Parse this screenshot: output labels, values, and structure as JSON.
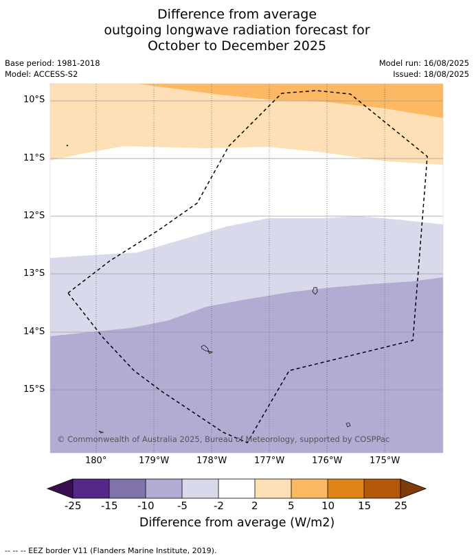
{
  "title": {
    "line1": "Difference from average",
    "line2": "outgoing longwave radiation forecast for",
    "line3": "October to December 2025"
  },
  "meta": {
    "base_period": "Base period: 1981-2018",
    "model": "Model: ACCESS-S2",
    "model_run": "Model run: 16/08/2025",
    "issued": "Issued: 18/08/2025"
  },
  "map": {
    "lat_labels": [
      "10°S",
      "11°S",
      "12°S",
      "13°S",
      "14°S",
      "15°S"
    ],
    "lon_labels": [
      "180°",
      "179°W",
      "178°W",
      "177°W",
      "176°W",
      "175°W"
    ],
    "copyright": "© Commonwealth of Australia 2025, Bureau of Meteorology, supported by COSPPac",
    "colors": {
      "strong_positive": "#fdb863",
      "weak_positive": "#fee0b6",
      "neutral": "#ffffff",
      "weak_negative": "#d8daeb",
      "moderate_negative": "#b2abd2"
    }
  },
  "colorbar": {
    "labels": [
      "-25",
      "-15",
      "-10",
      "-5",
      "-2",
      "2",
      "5",
      "10",
      "15",
      "25"
    ],
    "colors": [
      "#3b0f4f",
      "#542788",
      "#8073ac",
      "#b2abd2",
      "#d8daeb",
      "#ffffff",
      "#fee0b6",
      "#fdb863",
      "#e08214",
      "#b35806",
      "#7f3b08"
    ],
    "title": "Difference from average (W/m2)"
  },
  "footer": "--  --  -- EEZ border V11 (Flanders Marine Institute, 2019)."
}
